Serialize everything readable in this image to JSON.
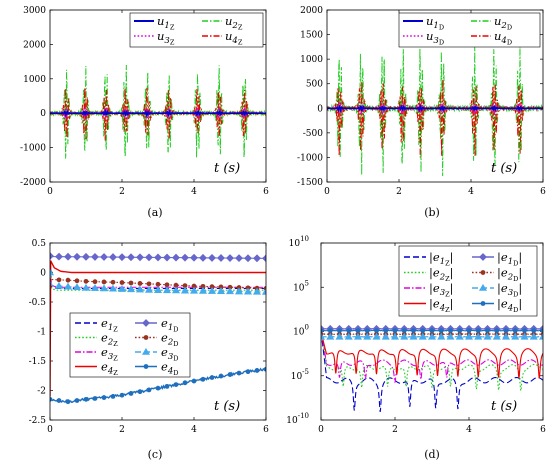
{
  "chart_data": [
    {
      "panel": "a",
      "type": "line",
      "caption": "(a)",
      "time_label": "t (s)",
      "xlim": [
        0,
        6
      ],
      "ylim": [
        -2000,
        3000
      ],
      "x_ticks": [
        "0",
        "2",
        "4",
        "6"
      ],
      "y_ticks": [
        "-2000",
        "-1000",
        "0",
        "1000",
        "2000",
        "3000"
      ],
      "legend_position": "top-right",
      "bursts_t": [
        0.45,
        0.98,
        1.55,
        2.1,
        2.7,
        3.3,
        4.1,
        4.7,
        5.4
      ],
      "series": [
        {
          "name": "u1Z",
          "color": "#0000cc",
          "style": "solid",
          "amplitude": 60
        },
        {
          "name": "u2Z",
          "color": "#22cc22",
          "style": "dashdot",
          "amplitude": 1500
        },
        {
          "name": "u3Z",
          "color": "#dd00dd",
          "style": "dotted",
          "amplitude": 200
        },
        {
          "name": "u4Z",
          "color": "#ee0000",
          "style": "dashdot",
          "amplitude": 850
        }
      ]
    },
    {
      "panel": "b",
      "type": "line",
      "caption": "(b)",
      "time_label": "t (s)",
      "xlim": [
        0,
        6
      ],
      "ylim": [
        -1500,
        2000
      ],
      "x_ticks": [
        "0",
        "2",
        "4",
        "6"
      ],
      "y_ticks": [
        "-1500",
        "-1000",
        "-500",
        "0",
        "500",
        "1000",
        "1500",
        "2000"
      ],
      "legend_position": "top-right",
      "bursts_t": [
        0.35,
        0.95,
        1.55,
        2.1,
        2.6,
        3.2,
        4.1,
        4.65,
        5.35
      ],
      "series": [
        {
          "name": "u1D",
          "color": "#0000cc",
          "style": "solid",
          "amplitude": 40
        },
        {
          "name": "u2D",
          "color": "#22cc22",
          "style": "dashdot",
          "amplitude": 1400
        },
        {
          "name": "u3D",
          "color": "#dd00dd",
          "style": "dotted",
          "amplitude": 150
        },
        {
          "name": "u4D",
          "color": "#ee0000",
          "style": "dashdot",
          "amplitude": 800
        }
      ]
    },
    {
      "panel": "c",
      "type": "line",
      "caption": "(c)",
      "time_label": "t (s)",
      "xlim": [
        0,
        6
      ],
      "ylim": [
        -2.5,
        0.5
      ],
      "x_ticks": [
        "0",
        "2",
        "4",
        "6"
      ],
      "y_ticks": [
        "-2.5",
        "-2",
        "-1.5",
        "-1",
        "-0.5",
        "0",
        "0.5"
      ],
      "legend_position": "center",
      "series": [
        {
          "name": "e1Z",
          "color": "#0000cc",
          "style": "dashed",
          "t": [
            0,
            0.05,
            0.2,
            6
          ],
          "y": [
            0,
            -0.25,
            -0.27,
            -0.27
          ]
        },
        {
          "name": "e2Z",
          "color": "#22cc22",
          "style": "dotted",
          "t": [
            0,
            0.05,
            0.2,
            6
          ],
          "y": [
            0,
            -0.28,
            -0.3,
            -0.3
          ]
        },
        {
          "name": "e3Z",
          "color": "#dd00dd",
          "style": "dashdot",
          "t": [
            0,
            0.05,
            0.2,
            6
          ],
          "y": [
            0,
            -0.22,
            -0.25,
            -0.25
          ]
        },
        {
          "name": "e4Z",
          "color": "#ee0000",
          "style": "solid",
          "t": [
            0,
            0.02,
            0.06,
            0.12,
            0.3,
            0.6,
            6
          ],
          "y": [
            -2.1,
            0.2,
            0.15,
            0.08,
            0.02,
            0.0,
            0.0
          ]
        },
        {
          "name": "e1D",
          "color": "#6666cc",
          "style": "solid",
          "marker": "diamond",
          "t": [
            0,
            0.05,
            6
          ],
          "y": [
            0.28,
            0.27,
            0.24
          ]
        },
        {
          "name": "e2D",
          "color": "#993322",
          "style": "dotted",
          "marker": "dot",
          "t": [
            0,
            0.05,
            0.5,
            1,
            2,
            3,
            4,
            5,
            6
          ],
          "y": [
            0,
            -0.12,
            -0.13,
            -0.15,
            -0.17,
            -0.2,
            -0.23,
            -0.25,
            -0.27
          ]
        },
        {
          "name": "e3D",
          "color": "#44aaee",
          "style": "dashed",
          "marker": "triangle",
          "t": [
            0,
            0.05,
            0.5,
            1,
            2,
            3,
            4,
            5,
            6
          ],
          "y": [
            0,
            -0.22,
            -0.24,
            -0.26,
            -0.28,
            -0.3,
            -0.31,
            -0.32,
            -0.33
          ]
        },
        {
          "name": "e4D",
          "color": "#1f6fbf",
          "style": "solid",
          "marker": "dot",
          "t": [
            0,
            0.5,
            1,
            1.5,
            2,
            2.5,
            3,
            3.5,
            4,
            4.5,
            5,
            5.5,
            6
          ],
          "y": [
            -2.15,
            -2.19,
            -2.15,
            -2.12,
            -2.08,
            -2.02,
            -1.96,
            -1.9,
            -1.84,
            -1.78,
            -1.73,
            -1.68,
            -1.64
          ]
        }
      ]
    },
    {
      "panel": "d",
      "type": "line",
      "caption": "(d)",
      "time_label": "t (s)",
      "y_scale": "log",
      "xlim": [
        0,
        6
      ],
      "ylim_exp": [
        -10,
        10
      ],
      "x_ticks": [
        "0",
        "2",
        "4",
        "6"
      ],
      "y_ticks": [
        "10",
        "10",
        "10",
        "10",
        "10"
      ],
      "y_tick_exps": [
        "-10",
        "-5",
        "0",
        "5",
        "10"
      ],
      "legend_position": "top-right",
      "series": [
        {
          "name": "|e1Z|",
          "color": "#0000cc",
          "style": "dashed",
          "level_exp": -5.5,
          "dip_exp": -8.8,
          "dips_t": [
            0.9,
            1.6,
            2.4,
            3.1,
            3.7
          ]
        },
        {
          "name": "|e2Z|",
          "color": "#22cc22",
          "style": "dotted",
          "level_exp": -4.0,
          "dip_exp": -6.5,
          "dips_t": [
            0.6,
            1.1,
            1.8,
            2.3,
            3.0,
            3.5,
            4.2,
            4.8,
            5.4
          ]
        },
        {
          "name": "|e3Z|",
          "color": "#dd00dd",
          "style": "dashdot",
          "level_exp": -3.5,
          "dip_exp": -5.5,
          "dips_t": [
            0.5,
            1.2,
            2.0,
            2.7,
            3.4
          ]
        },
        {
          "name": "|e4Z|",
          "color": "#ee0000",
          "style": "solid",
          "level_exp": -2.2,
          "dip_exp": -5.0,
          "dips_t": [
            0.4,
            0.95,
            1.5,
            2.05,
            2.6,
            3.15,
            3.7,
            4.25,
            4.8,
            5.35,
            5.9
          ]
        },
        {
          "name": "|e1D|",
          "color": "#6666cc",
          "style": "solid",
          "marker": "diamond",
          "level_exp": 0.3
        },
        {
          "name": "|e2D|",
          "color": "#993322",
          "style": "dotted",
          "marker": "dot",
          "level_exp": -0.3
        },
        {
          "name": "|e3D|",
          "color": "#44aaee",
          "style": "dashed",
          "marker": "triangle",
          "level_exp": -0.6
        },
        {
          "name": "|e4D|",
          "color": "#1f6fbf",
          "style": "solid",
          "marker": "dot",
          "level_exp": 0.1
        }
      ]
    }
  ]
}
